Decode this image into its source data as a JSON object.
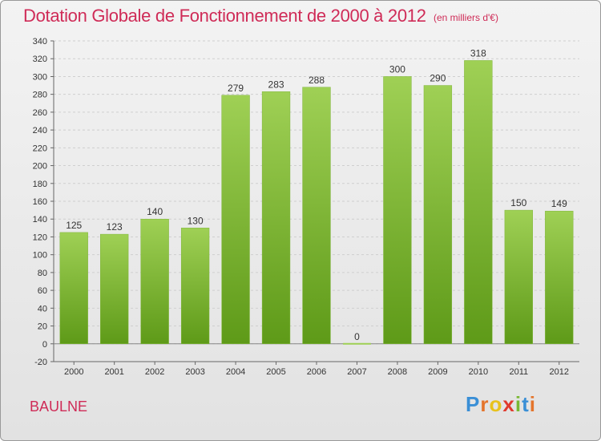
{
  "title": "Dotation Globale de Fonctionnement de 2000 à 2012",
  "subtitle": "(en milliers d'€)",
  "commune": "BAULNE",
  "logo": {
    "text": "Proxiti",
    "letter_colors": [
      "#3a8fd6",
      "#e4742b",
      "#e8c21d",
      "#e03a2e",
      "#79b833",
      "#3a8fd6",
      "#e4742b"
    ]
  },
  "colors": {
    "bar_light": "#9fd055",
    "bar_dark": "#5e9a18",
    "title": "#cf2b57"
  },
  "chart_data": {
    "type": "bar",
    "categories": [
      "2000",
      "2001",
      "2002",
      "2003",
      "2004",
      "2005",
      "2006",
      "2007",
      "2008",
      "2009",
      "2010",
      "2011",
      "2012"
    ],
    "values": [
      125,
      123,
      140,
      130,
      279,
      283,
      288,
      0,
      300,
      290,
      318,
      150,
      149
    ],
    "data_labels": [
      "125",
      "123",
      "140",
      "130",
      "279",
      "283",
      "288",
      "0",
      "300",
      "290",
      "318",
      "150",
      "149"
    ],
    "yticks": [
      -20,
      0,
      20,
      40,
      60,
      80,
      100,
      120,
      140,
      160,
      180,
      200,
      220,
      240,
      260,
      280,
      300,
      320,
      340
    ],
    "ylim": [
      -20,
      340
    ],
    "grid": true
  }
}
